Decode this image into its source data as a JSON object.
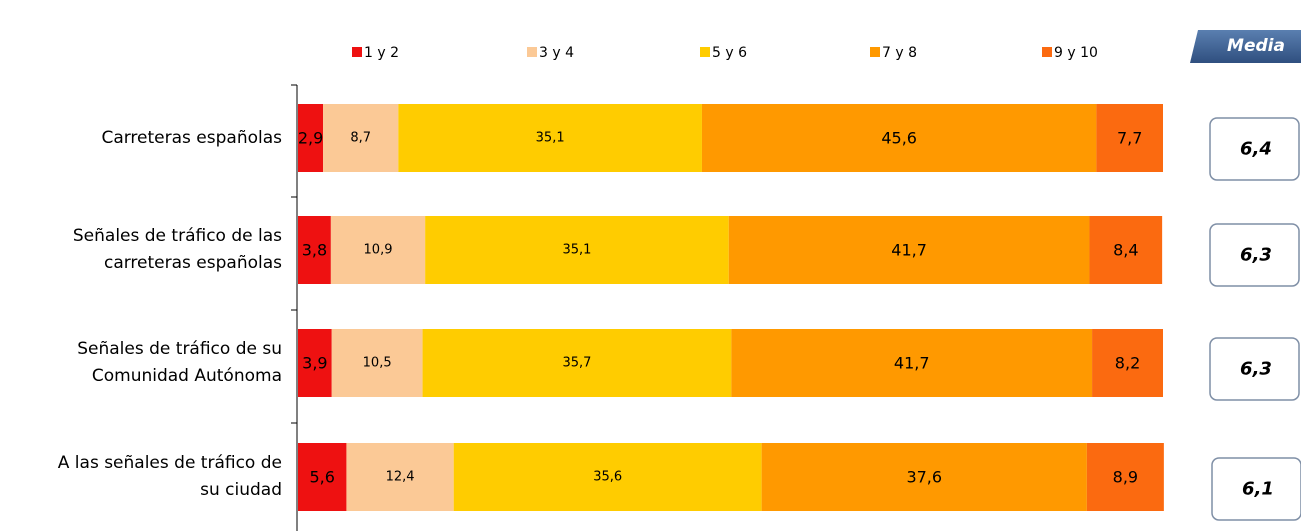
{
  "chart_data": {
    "type": "stacked-bar-horizontal",
    "categories": [
      "Carreteras españolas",
      "Señales de tráfico de las\ncarreteras españolas",
      "Señales de tráfico de su\nComunidad Autónoma",
      "A las señales de tráfico de\nsu ciudad"
    ],
    "xlim": [
      0,
      100
    ],
    "legend": "top",
    "series": [
      {
        "name": "1 y 2",
        "color": "#ee1111",
        "values": [
          2.9,
          3.8,
          3.9,
          5.6
        ],
        "value_labels": [
          "2,9",
          "3,8",
          "3,9",
          "5,6"
        ]
      },
      {
        "name": "3 y 4",
        "color": "#fbc996",
        "values": [
          8.7,
          10.9,
          10.5,
          12.4
        ],
        "value_labels": [
          "8,7",
          "10,9",
          "10,5",
          "12,4"
        ]
      },
      {
        "name": "5 y 6",
        "color": "#ffcc00",
        "values": [
          35.1,
          35.1,
          35.7,
          35.6
        ],
        "value_labels": [
          "35,1",
          "35,1",
          "35,7",
          "35,6"
        ]
      },
      {
        "name": "7 y 8",
        "color": "#ff9900",
        "values": [
          45.6,
          41.7,
          41.7,
          37.6
        ],
        "value_labels": [
          "45,6",
          "41,7",
          "41,7",
          "37,6"
        ]
      },
      {
        "name": "9 y 10",
        "color": "#fb6a10",
        "values": [
          7.7,
          8.4,
          8.2,
          8.9
        ],
        "value_labels": [
          "7,7",
          "8,4",
          "8,2",
          "8,9"
        ]
      }
    ],
    "media": {
      "title": "Media",
      "values": [
        6.4,
        6.3,
        6.3,
        6.1
      ],
      "value_labels": [
        "6,4",
        "6,3",
        "6,3",
        "6,1"
      ]
    }
  }
}
